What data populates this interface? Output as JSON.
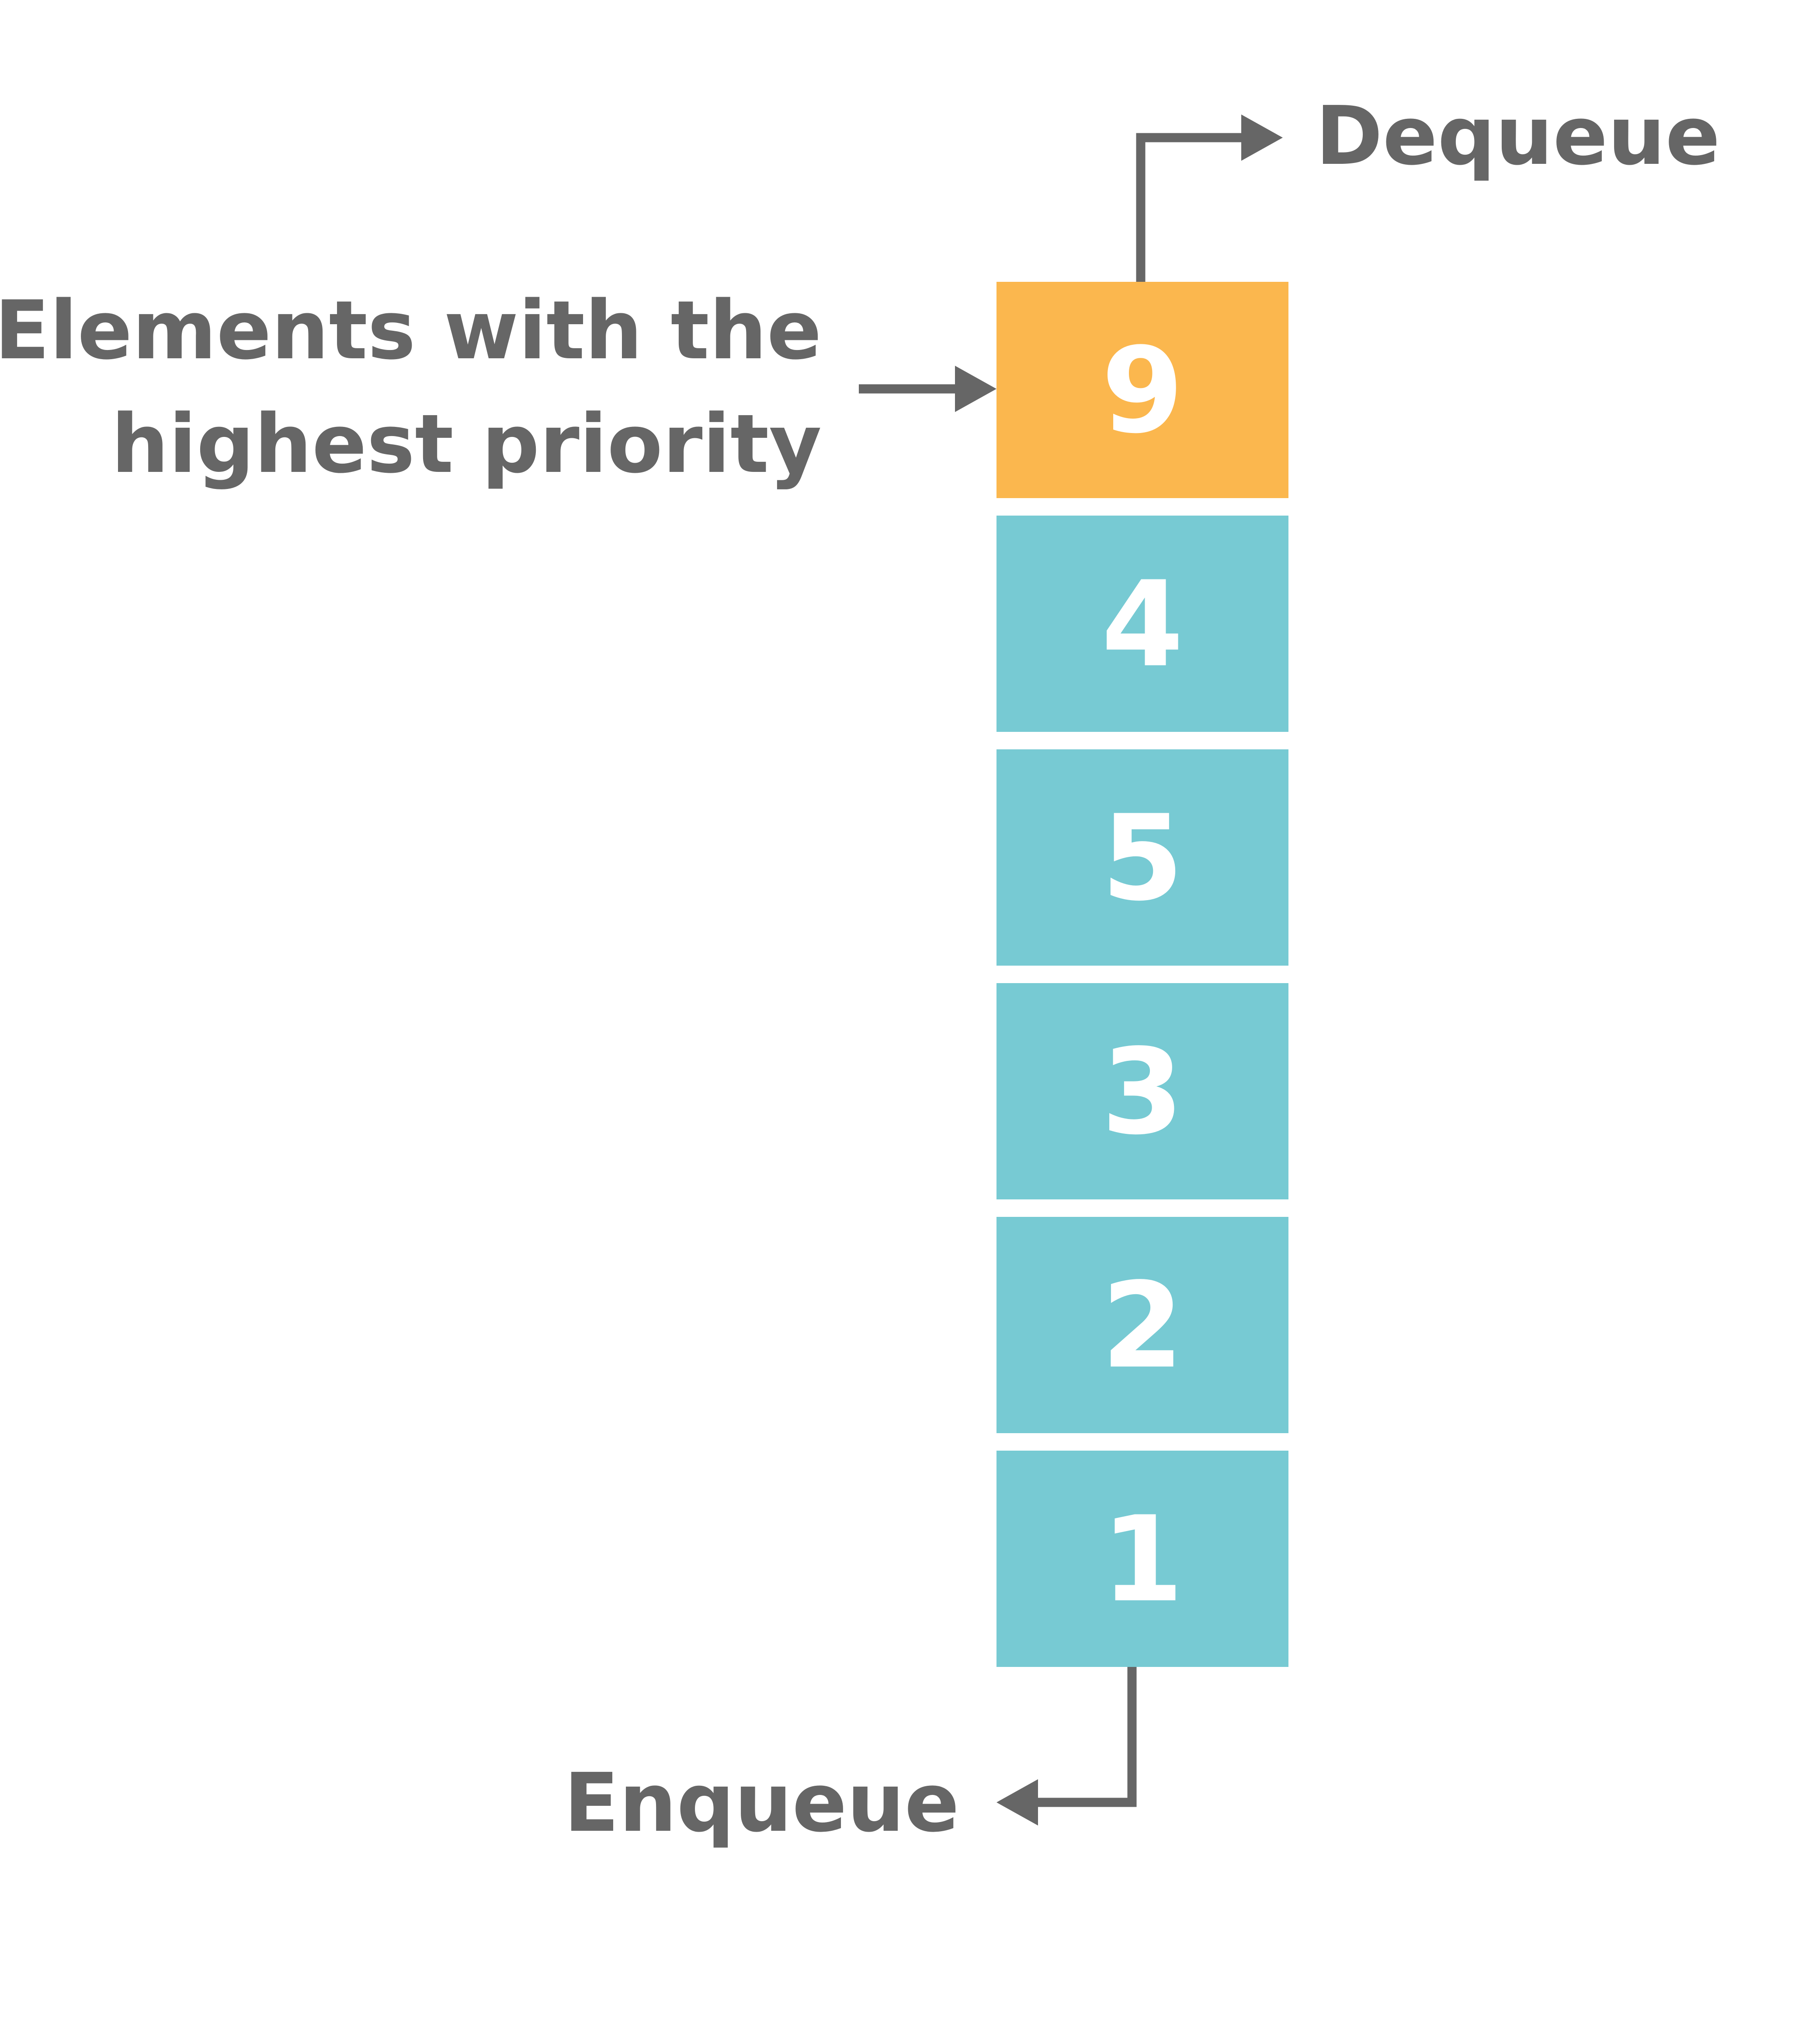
{
  "labels": {
    "dequeue": "Dequeue",
    "enqueue": "Enqueue",
    "highest_line1": "Elements with the",
    "highest_line2": "highest priority"
  },
  "queue": {
    "items": [
      "9",
      "4",
      "5",
      "3",
      "2",
      "1"
    ],
    "highlight_index": 0
  },
  "colors": {
    "highlight": "#FBB74E",
    "normal": "#77CAD3",
    "arrow": "#666666",
    "label_text": "#666666",
    "number_text": "#FFFFFF"
  }
}
